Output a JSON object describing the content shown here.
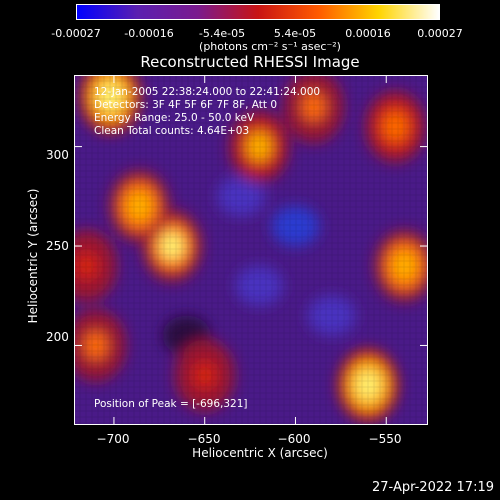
{
  "colorbar": {
    "ticks": [
      "-0.00027",
      "-0.00016",
      "-5.4e-05",
      "5.4e-05",
      "0.00016",
      "0.00027"
    ],
    "unit": "(photons cm⁻² s⁻¹ asec⁻²)",
    "colors": [
      "#0000ff",
      "#5a1fb0",
      "#7a1a8e",
      "#c81414",
      "#ff5a00",
      "#ffd400",
      "#ffffff"
    ]
  },
  "title": "Reconstructed RHESSI Image",
  "info": {
    "line1": "12-Jan-2005 22:38:24.000 to 22:41:24.000",
    "line2": "Detectors: 3F 4F 5F 6F 7F 8F, Att 0",
    "line3": "Energy Range: 25.0 - 50.0 keV",
    "line4": "Clean   Total counts: 4.64E+03",
    "peak": "Position of Peak = [-696,321]"
  },
  "axes": {
    "xlabel": "Heliocentric X (arcsec)",
    "ylabel": "Heliocentric Y (arcsec)"
  },
  "timestamp": "27-Apr-2022 17:19",
  "chart_data": {
    "type": "heatmap",
    "title": "Reconstructed RHESSI Image",
    "xlabel": "Heliocentric X (arcsec)",
    "ylabel": "Heliocentric Y (arcsec)",
    "xlim": [
      -722,
      -527
    ],
    "ylim": [
      160,
      336
    ],
    "xticks": [
      -700,
      -650,
      -600,
      -550
    ],
    "yticks": [
      200,
      250,
      300
    ],
    "xtick_labels": [
      "−700",
      "−650",
      "−600",
      "−550"
    ],
    "ytick_labels": [
      "200",
      "250",
      "300"
    ],
    "color_range": [
      -0.00027,
      0.00027
    ],
    "peak": [
      -696,
      321
    ],
    "bright_regions": [
      {
        "x": -702,
        "y": 325,
        "level": 1.0
      },
      {
        "x": -668,
        "y": 250,
        "level": 0.9
      },
      {
        "x": -686,
        "y": 270,
        "level": 0.8
      },
      {
        "x": -620,
        "y": 300,
        "level": 0.75
      },
      {
        "x": -560,
        "y": 180,
        "level": 1.0
      },
      {
        "x": -540,
        "y": 240,
        "level": 0.8
      },
      {
        "x": -545,
        "y": 310,
        "level": 0.7
      },
      {
        "x": -650,
        "y": 185,
        "level": 0.55
      },
      {
        "x": -710,
        "y": 200,
        "level": 0.6
      },
      {
        "x": -590,
        "y": 320,
        "level": 0.6
      },
      {
        "x": -715,
        "y": 240,
        "level": 0.55
      }
    ],
    "dark_regions": [
      {
        "x": -600,
        "y": 260,
        "level": -0.9
      },
      {
        "x": -620,
        "y": 230,
        "level": -0.7
      },
      {
        "x": -630,
        "y": 275,
        "level": -0.6
      },
      {
        "x": -580,
        "y": 215,
        "level": -0.6
      },
      {
        "x": -660,
        "y": 205,
        "level": -0.5
      }
    ]
  }
}
